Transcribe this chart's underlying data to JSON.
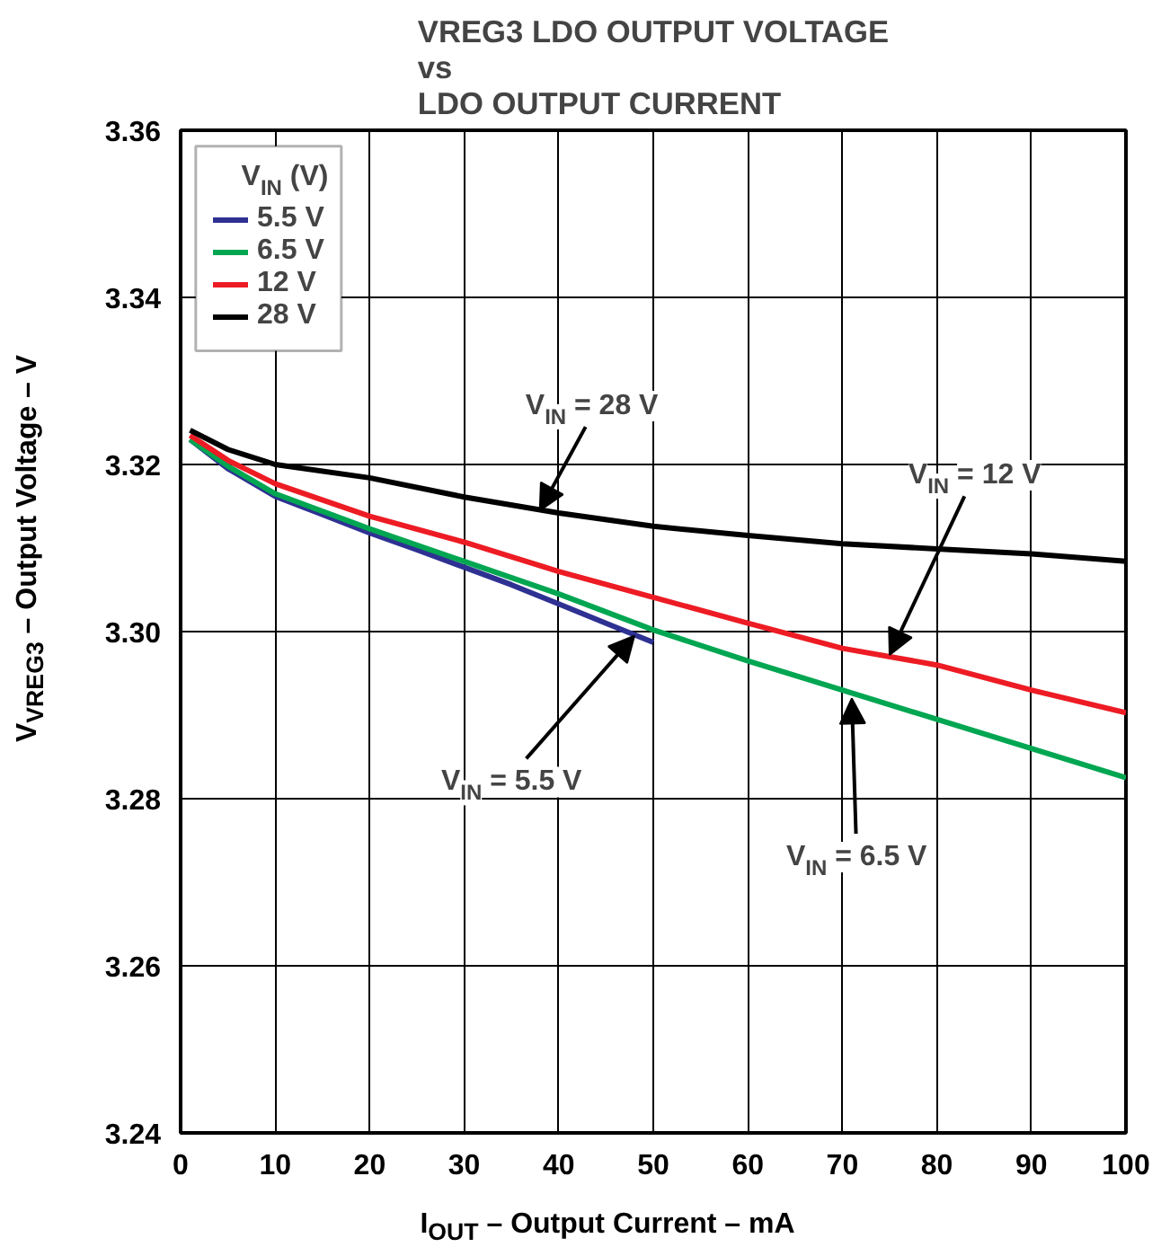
{
  "chart_data": {
    "type": "line",
    "title": "VREG3 LDO OUTPUT VOLTAGE\nvs\nLDO OUTPUT CURRENT",
    "xlabel": "I$_{OUT}$ – Output Current – mA",
    "ylabel": "V$_{VREG3}$ – Output Voltage – V",
    "legend_title": "V$_{IN}$ (V)",
    "series": [
      {
        "name": "5.5 V",
        "color": "#2e3192",
        "x": [
          1,
          5,
          10,
          15,
          20,
          25,
          30,
          35,
          40,
          45,
          50
        ],
        "values": [
          3.323,
          3.3195,
          3.3162,
          3.314,
          3.3118,
          3.3098,
          3.3077,
          3.3056,
          3.3033,
          3.301,
          3.2987
        ]
      },
      {
        "name": "6.5 V",
        "color": "#00a651",
        "x": [
          1,
          5,
          10,
          20,
          30,
          40,
          50,
          60,
          70,
          80,
          90,
          100
        ],
        "values": [
          3.323,
          3.3198,
          3.3165,
          3.3123,
          3.3084,
          3.3045,
          3.3002,
          3.2965,
          3.293,
          3.2895,
          3.286,
          3.2825
        ]
      },
      {
        "name": "12 V",
        "color": "#ed1c24",
        "x": [
          1,
          5,
          10,
          20,
          30,
          40,
          50,
          60,
          70,
          80,
          90,
          100
        ],
        "values": [
          3.3235,
          3.3205,
          3.3177,
          3.3138,
          3.3107,
          3.3072,
          3.3041,
          3.301,
          3.298,
          3.296,
          3.293,
          3.2903
        ]
      },
      {
        "name": "28 V",
        "color": "#000000",
        "x": [
          1,
          5,
          10,
          20,
          30,
          40,
          50,
          60,
          70,
          80,
          90,
          100
        ],
        "values": [
          3.3241,
          3.3218,
          3.32,
          3.3184,
          3.3161,
          3.3142,
          3.3126,
          3.3115,
          3.3105,
          3.3099,
          3.3093,
          3.3084
        ]
      }
    ],
    "annotations": [
      {
        "text": "V$_{IN}$ = 28 V",
        "x": 38,
        "y": 3.3145
      },
      {
        "text": "V$_{IN}$ = 12 V",
        "x": 75,
        "y": 3.2972
      },
      {
        "text": "V$_{IN}$ = 5.5 V",
        "x": 48,
        "y": 3.2995
      },
      {
        "text": "V$_{IN}$ = 6.5 V",
        "x": 71,
        "y": 3.292
      }
    ],
    "xlim": [
      0,
      100
    ],
    "xticks": [
      0,
      10,
      20,
      30,
      40,
      50,
      60,
      70,
      80,
      90,
      100
    ],
    "ylim": [
      3.24,
      3.36
    ],
    "yticks": [
      3.24,
      3.26,
      3.28,
      {
        "value": 3.3,
        "label": "3.30"
      },
      3.32,
      3.34,
      3.36
    ],
    "grid": true,
    "legend": "top left",
    "line_style": "solid",
    "marker": "none"
  }
}
